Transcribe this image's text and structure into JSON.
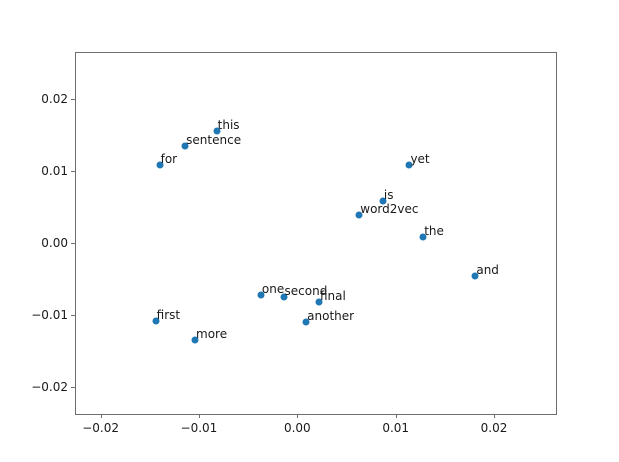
{
  "figure": {
    "background": "#ffffff",
    "point_color": "#1f77b4",
    "text_color": "#1a1a1a",
    "spine_color": "#6e6e6e"
  },
  "chart_data": {
    "type": "scatter",
    "title": "",
    "xlabel": "",
    "ylabel": "",
    "grid": false,
    "legend": null,
    "xlim": [
      -0.0225,
      0.0263
    ],
    "ylim": [
      -0.0237,
      0.0264
    ],
    "x_ticks": [
      {
        "value": -0.02,
        "label": "−0.02"
      },
      {
        "value": -0.01,
        "label": "−0.01"
      },
      {
        "value": 0.0,
        "label": "0.00"
      },
      {
        "value": 0.01,
        "label": "0.01"
      },
      {
        "value": 0.02,
        "label": "0.02"
      }
    ],
    "y_ticks": [
      {
        "value": 0.02,
        "label": "0.02"
      },
      {
        "value": 0.01,
        "label": "0.01"
      },
      {
        "value": 0.0,
        "label": "0.00"
      },
      {
        "value": -0.01,
        "label": "−0.01"
      },
      {
        "value": -0.02,
        "label": "−0.02"
      }
    ],
    "points": [
      {
        "word": "this",
        "x": -0.0082,
        "y": 0.0156
      },
      {
        "word": "sentence",
        "x": -0.0114,
        "y": 0.0135
      },
      {
        "word": "for",
        "x": -0.014,
        "y": 0.0108
      },
      {
        "word": "yet",
        "x": 0.0114,
        "y": 0.0109
      },
      {
        "word": "is",
        "x": 0.0087,
        "y": 0.0058
      },
      {
        "word": "word2vec",
        "x": 0.0063,
        "y": 0.0039
      },
      {
        "word": "the",
        "x": 0.0128,
        "y": 0.0009
      },
      {
        "word": "and",
        "x": 0.0181,
        "y": -0.0045
      },
      {
        "word": "one",
        "x": -0.0037,
        "y": -0.0072
      },
      {
        "word": "second",
        "x": -0.0014,
        "y": -0.0075
      },
      {
        "word": "final",
        "x": 0.0022,
        "y": -0.0081
      },
      {
        "word": "another",
        "x": 0.0009,
        "y": -0.0109
      },
      {
        "word": "first",
        "x": -0.0144,
        "y": -0.0108
      },
      {
        "word": "more",
        "x": -0.0104,
        "y": -0.0134
      }
    ]
  }
}
